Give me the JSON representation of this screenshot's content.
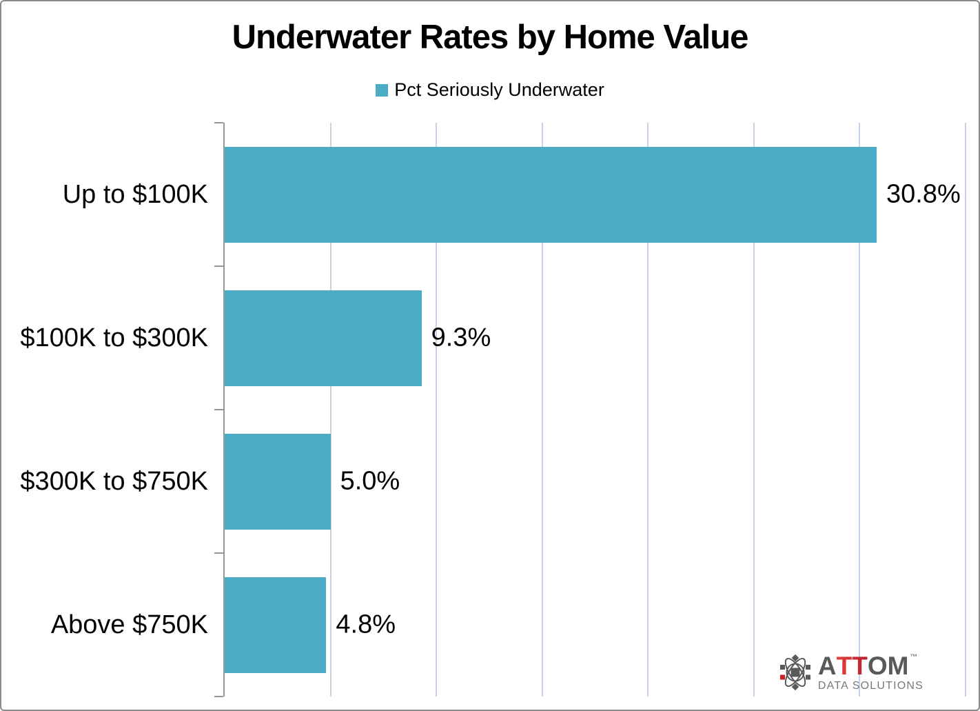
{
  "chart_data": {
    "type": "bar",
    "orientation": "horizontal",
    "title": "Underwater Rates by Home Value",
    "legend": {
      "label": "Pct Seriously Underwater",
      "position": "top-center"
    },
    "categories": [
      "Up to $100K",
      "$100K to $300K",
      "$300K to $750K",
      "Above $750K"
    ],
    "series": [
      {
        "name": "Pct Seriously Underwater",
        "values": [
          30.8,
          9.3,
          5.0,
          4.8
        ],
        "labels": [
          "30.8%",
          "9.3%",
          "5.0%",
          "4.8%"
        ]
      }
    ],
    "xlim": [
      0,
      35
    ],
    "grid": true,
    "gridline_step": 5,
    "ylabel": "",
    "xlabel": "",
    "colors": {
      "bar": "#4BACC6",
      "gridline": "#C4D3E8",
      "axis": "#979797",
      "text": "#000000"
    }
  },
  "logo": {
    "icon": "atom-icon",
    "brand_prefix": "A",
    "brand_highlight": "TT",
    "brand_suffix": "OM",
    "trademark": "™",
    "subtitle": "DATA SOLUTIONS",
    "colors": {
      "gray": "#58595B",
      "red": "#CB2026",
      "subtitle_gray": "#77787B"
    }
  }
}
